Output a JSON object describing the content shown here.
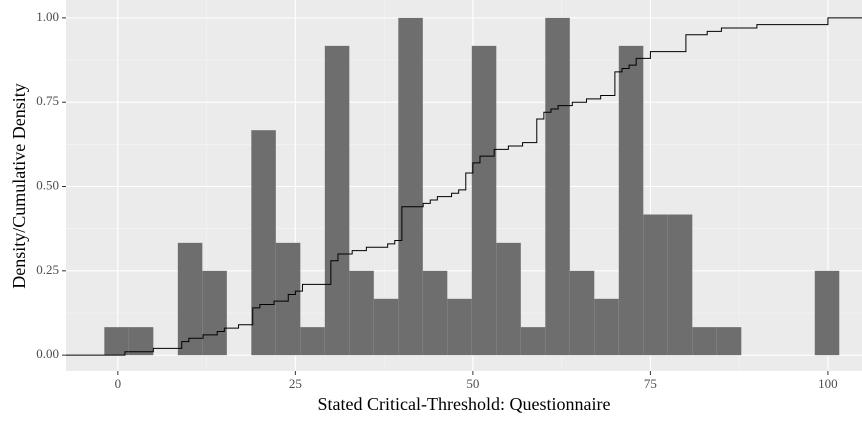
{
  "chart_data": {
    "type": "histogram",
    "x_label": "Stated Critical-Threshold: Questionnaire",
    "y_label": "Density/Cumulative Density",
    "bins": [
      -1.9,
      1.55,
      5.0,
      8.45,
      11.9,
      15.35,
      18.8,
      22.25,
      25.7,
      29.15,
      32.6,
      36.05,
      39.5,
      42.95,
      46.4,
      49.85,
      53.3,
      56.75,
      60.2,
      63.65,
      67.1,
      70.55,
      74.0,
      77.45,
      80.9,
      84.35,
      87.8,
      91.25,
      94.7,
      98.15,
      101.6
    ],
    "values": [
      0.083,
      0.083,
      0,
      0.333,
      0.25,
      0,
      0.667,
      0.333,
      0.083,
      0.917,
      0.25,
      0.167,
      1.0,
      0.25,
      0.167,
      0.917,
      0.333,
      0.083,
      1.0,
      0.25,
      0.167,
      0.917,
      0.417,
      0.417,
      0.083,
      0.083,
      0,
      0,
      0,
      0.25
    ],
    "color": "#6e6e6e",
    "ecdf": {
      "color": "#000000",
      "x": [
        -7.3,
        1,
        5,
        9,
        10,
        12,
        14,
        15,
        17,
        19,
        20,
        22,
        24,
        25,
        26,
        30,
        31,
        33,
        35,
        38,
        39,
        40,
        43,
        44,
        45,
        47,
        48,
        49,
        50,
        51,
        53,
        55,
        57,
        59,
        60,
        61,
        62,
        64,
        66,
        68,
        70,
        71,
        72,
        73,
        75,
        80,
        83,
        85,
        90,
        100,
        104.8
      ],
      "y": [
        0,
        0.01,
        0.02,
        0.04,
        0.05,
        0.06,
        0.07,
        0.08,
        0.09,
        0.14,
        0.15,
        0.16,
        0.18,
        0.19,
        0.21,
        0.28,
        0.3,
        0.31,
        0.32,
        0.33,
        0.34,
        0.44,
        0.45,
        0.46,
        0.47,
        0.48,
        0.49,
        0.54,
        0.57,
        0.59,
        0.61,
        0.62,
        0.63,
        0.7,
        0.72,
        0.73,
        0.74,
        0.75,
        0.76,
        0.77,
        0.84,
        0.85,
        0.86,
        0.88,
        0.9,
        0.95,
        0.96,
        0.97,
        0.98,
        1.0,
        1.0
      ]
    },
    "xlim": [
      -7.3,
      104.8
    ],
    "ylim": [
      -0.047,
      1.053
    ],
    "xticks": [
      0,
      25,
      50,
      75,
      100
    ],
    "yticks": [
      {
        "value": 0,
        "label": "0.00"
      },
      {
        "value": 0.25,
        "label": "0.25"
      },
      {
        "value": 0.5,
        "label": "0.50"
      },
      {
        "value": 0.75,
        "label": "0.75"
      },
      {
        "value": 1,
        "label": "1.00"
      }
    ],
    "grid": true
  }
}
